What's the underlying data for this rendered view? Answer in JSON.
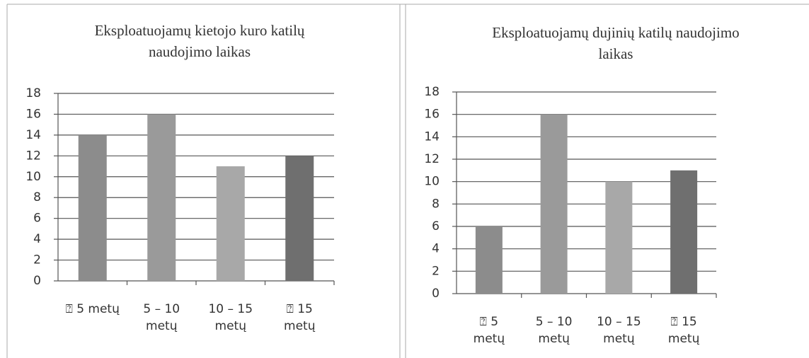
{
  "chart_data": [
    {
      "type": "bar",
      "title": [
        "Eksploatuojamų kietojo kuro katilų",
        "naudojimo laikas"
      ],
      "categories": [
        [
          "⍰ 5 metų"
        ],
        [
          "5 – 10",
          "metų"
        ],
        [
          "10 – 15",
          "metų"
        ],
        [
          "⍰ 15",
          "metų"
        ]
      ],
      "values": [
        14,
        16,
        11,
        12
      ],
      "colors": [
        "#8c8c8c",
        "#9a9a9a",
        "#a8a8a8",
        "#6f6f6f"
      ],
      "ylim": [
        0,
        18
      ],
      "yticks": [
        0,
        2,
        4,
        6,
        8,
        10,
        12,
        14,
        16,
        18
      ],
      "grid": true
    },
    {
      "type": "bar",
      "title": [
        "Eksploatuojamų dujinių katilų naudojimo",
        "laikas"
      ],
      "categories": [
        [
          "⍰ 5",
          "metų"
        ],
        [
          "5 – 10",
          "metų"
        ],
        [
          "10 – 15",
          "metų"
        ],
        [
          "⍰ 15",
          "metų"
        ]
      ],
      "values": [
        6,
        16,
        10,
        11
      ],
      "colors": [
        "#8c8c8c",
        "#9a9a9a",
        "#a8a8a8",
        "#6f6f6f"
      ],
      "ylim": [
        0,
        18
      ],
      "yticks": [
        0,
        2,
        4,
        6,
        8,
        10,
        12,
        14,
        16,
        18
      ],
      "grid": true
    }
  ]
}
